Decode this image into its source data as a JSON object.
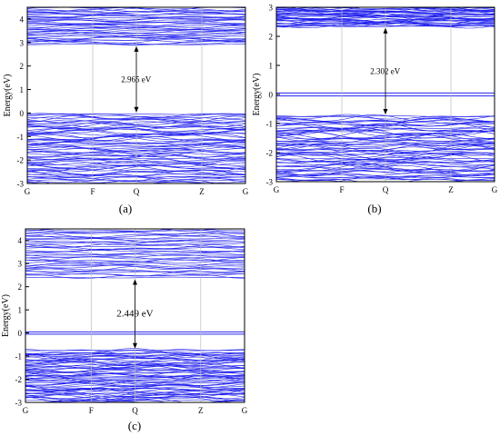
{
  "figure": {
    "panel_labels": [
      "(a)",
      "(b)",
      "(c)"
    ]
  },
  "colors": {
    "band": "#2222ee",
    "axis": "#000000",
    "vline": "#bbbbbb",
    "arrow": "#000000"
  },
  "chart_data": [
    {
      "type": "line",
      "panel": "(a)",
      "ylabel": "Energy(eV)",
      "xticks": [
        "G",
        "F",
        "Q",
        "Z",
        "G"
      ],
      "ylim": [
        -3,
        4.5
      ],
      "yticks": [
        -3,
        -2,
        -1,
        0,
        1,
        2,
        3,
        4
      ],
      "valence_band_top": -0.05,
      "conduction_band_bottom": 2.92,
      "valence_band_region": [
        -3.0,
        -0.05
      ],
      "conduction_band_region": [
        2.92,
        4.5
      ],
      "flat_levels": [],
      "gap_annotation": "2.965 eV",
      "grid": false
    },
    {
      "type": "line",
      "panel": "(b)",
      "ylabel": "Energy(eV)",
      "xticks": [
        "G",
        "F",
        "Q",
        "Z",
        "G"
      ],
      "ylim": [
        -3,
        3
      ],
      "yticks": [
        -3,
        -2,
        -1,
        0,
        1,
        2,
        3
      ],
      "valence_band_top": -0.75,
      "conduction_band_bottom": 2.35,
      "valence_band_region": [
        -3.0,
        -0.75
      ],
      "conduction_band_region": [
        2.35,
        3.0
      ],
      "flat_levels": [
        0.05,
        -0.05
      ],
      "gap_annotation": "2.302 eV",
      "grid": false
    },
    {
      "type": "line",
      "panel": "(c)",
      "ylabel": "Energy(eV)",
      "xticks": [
        "G",
        "F",
        "Q",
        "Z",
        "G"
      ],
      "ylim": [
        -3,
        4.5
      ],
      "yticks": [
        -3,
        -2,
        -1,
        0,
        1,
        2,
        3,
        4
      ],
      "valence_band_top": -0.75,
      "conduction_band_bottom": 2.4,
      "valence_band_region": [
        -3.0,
        -0.75
      ],
      "conduction_band_region": [
        2.4,
        4.5
      ],
      "flat_levels": [
        0.05,
        -0.05
      ],
      "gap_annotation": "2.449 eV",
      "grid": false
    }
  ]
}
